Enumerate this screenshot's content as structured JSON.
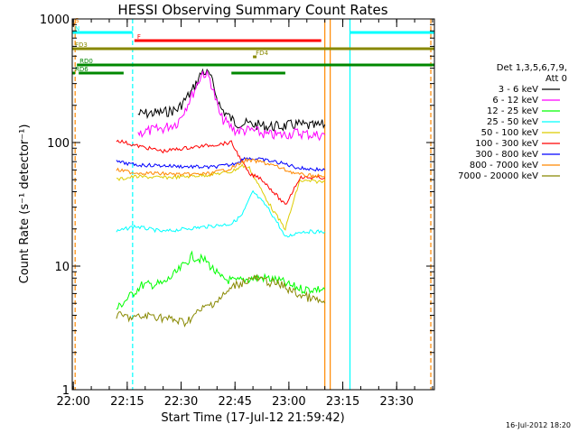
{
  "chart_data": {
    "type": "line",
    "title": "HESSI Observing Summary Count Rates",
    "xlabel": "Start Time (17-Jul-12 21:59:42)",
    "ylabel": "Count Rate (s⁻¹ detector⁻¹)",
    "footer": "16-Jul-2012 18:20",
    "y_scale": "log",
    "ylim": [
      1,
      1000
    ],
    "xlim": [
      "21:59:42",
      "23:40:30"
    ],
    "x_ticks": [
      "22:00",
      "22:15",
      "22:30",
      "22:45",
      "23:00",
      "23:15",
      "23:30"
    ],
    "y_ticks": [
      "1",
      "10",
      "100",
      "1000"
    ],
    "legend": {
      "placement": "right",
      "header": [
        "Det 1,3,5,6,7,9,",
        "Att 0"
      ]
    },
    "series": [
      {
        "name": "3 - 6 keV",
        "color": "#000000",
        "x": [
          "22:18",
          "22:25",
          "22:29",
          "22:33",
          "22:36",
          "22:38",
          "22:41",
          "22:45",
          "22:50",
          "22:54",
          "22:58",
          "23:02",
          "23:07",
          "23:10"
        ],
        "y": [
          170,
          175,
          185,
          260,
          380,
          350,
          190,
          145,
          140,
          135,
          135,
          140,
          135,
          140
        ]
      },
      {
        "name": "6 - 12 keV",
        "color": "#ff00ff",
        "x": [
          "22:18",
          "22:25",
          "22:29",
          "22:33",
          "22:36",
          "22:38",
          "22:41",
          "22:45",
          "22:50",
          "22:54",
          "22:58",
          "23:02",
          "23:07",
          "23:10"
        ],
        "y": [
          120,
          130,
          145,
          240,
          370,
          330,
          160,
          125,
          125,
          115,
          115,
          120,
          115,
          115
        ]
      },
      {
        "name": "12 - 25 keV",
        "color": "#00ff00",
        "x": [
          "22:12",
          "22:19",
          "22:25",
          "22:29",
          "22:33",
          "22:37",
          "22:41",
          "22:45",
          "22:50",
          "22:54",
          "22:58",
          "23:00",
          "23:04",
          "23:10"
        ],
        "y": [
          4.5,
          7,
          7.2,
          9,
          12,
          11,
          8,
          7.5,
          8,
          8,
          7.5,
          7,
          6.5,
          6.5
        ]
      },
      {
        "name": "25 - 50 keV",
        "color": "#00ffff",
        "x": [
          "22:12",
          "22:17",
          "22:25",
          "22:31",
          "22:38",
          "22:44",
          "22:47",
          "22:50",
          "22:54",
          "22:57",
          "22:59",
          "23:03",
          "23:10"
        ],
        "y": [
          19,
          21,
          19,
          20,
          21,
          22,
          26,
          40,
          30,
          22,
          17,
          19,
          19
        ]
      },
      {
        "name": "50 - 100 keV",
        "color": "#ddcc00",
        "x": [
          "22:12",
          "22:17",
          "22:25",
          "22:31",
          "22:38",
          "22:44",
          "22:47",
          "22:49",
          "22:53",
          "22:56",
          "22:59",
          "23:03",
          "23:10"
        ],
        "y": [
          50,
          53,
          52,
          53,
          55,
          58,
          65,
          62,
          38,
          27,
          20,
          49,
          48
        ]
      },
      {
        "name": "100 - 300 keV",
        "color": "#ff0000",
        "x": [
          "22:12",
          "22:17",
          "22:25",
          "22:31",
          "22:38",
          "22:44",
          "22:47",
          "22:49",
          "22:52",
          "22:55",
          "22:59",
          "23:03",
          "23:10"
        ],
        "y": [
          105,
          95,
          85,
          90,
          95,
          100,
          70,
          55,
          52,
          42,
          31,
          52,
          52
        ]
      },
      {
        "name": "300 - 800 keV",
        "color": "#0000ff",
        "x": [
          "22:12",
          "22:17",
          "22:25",
          "22:31",
          "22:38",
          "22:44",
          "22:48",
          "22:52",
          "22:56",
          "22:59",
          "23:03",
          "23:10"
        ],
        "y": [
          70,
          66,
          65,
          64,
          63,
          66,
          75,
          73,
          70,
          67,
          62,
          60
        ]
      },
      {
        "name": "800 - 7000 keV",
        "color": "#ff8800",
        "x": [
          "22:12",
          "22:17",
          "22:25",
          "22:31",
          "22:38",
          "22:44",
          "22:48",
          "22:52",
          "22:56",
          "22:59",
          "23:03",
          "23:10"
        ],
        "y": [
          60,
          57,
          56,
          55,
          56,
          62,
          72,
          70,
          65,
          60,
          55,
          53
        ]
      },
      {
        "name": "7000 - 20000 keV",
        "color": "#888800",
        "x": [
          "22:12",
          "22:17",
          "22:22",
          "22:27",
          "22:31",
          "22:36",
          "22:41",
          "22:45",
          "22:50",
          "22:54",
          "22:58",
          "23:02",
          "23:06",
          "23:10"
        ],
        "y": [
          4,
          3.8,
          4,
          3.7,
          3.5,
          4.5,
          5.5,
          7,
          8,
          7.5,
          7,
          6,
          5.5,
          5
        ]
      }
    ],
    "flags": [
      {
        "label": "S",
        "color": "#ff8800",
        "segments": [
          [
            "21:59:42",
            "22:00:30"
          ]
        ],
        "level": 1
      },
      {
        "label": "N",
        "color": "#00ffff",
        "segments": [
          [
            "21:59:42",
            "22:16:30"
          ],
          [
            "23:17:00",
            "23:40:30"
          ]
        ],
        "level": 2
      },
      {
        "label": "F",
        "color": "#ff0000",
        "segments": [
          [
            "22:17:00",
            "23:09:00"
          ]
        ],
        "level": 3
      },
      {
        "label": "FD3",
        "color": "#888800",
        "segments": [
          [
            "21:59:42",
            "23:40:30"
          ]
        ],
        "level": 4
      },
      {
        "label": "FD4",
        "color": "#888800",
        "segments": [
          [
            "22:50:00",
            "22:51:00"
          ]
        ],
        "level": 5
      },
      {
        "label": "RD0",
        "color": "#008800",
        "segments": [
          [
            "22:01:00",
            "23:40:30"
          ]
        ],
        "level": 6
      },
      {
        "label": "RD6",
        "color": "#008800",
        "segments": [
          [
            "21:59:42",
            "22:00:30"
          ],
          [
            "22:01:30",
            "22:14:00"
          ],
          [
            "22:44:00",
            "22:59:00"
          ]
        ],
        "level": 7
      }
    ],
    "markers": [
      {
        "time": "22:00:30",
        "color": "#ff8800",
        "style": "dashed"
      },
      {
        "time": "22:16:30",
        "color": "#00ffff",
        "style": "dashed"
      },
      {
        "time": "23:10:00",
        "color": "#ff8800",
        "style": "solid"
      },
      {
        "time": "23:11:30",
        "color": "#ff8800",
        "style": "solid"
      },
      {
        "time": "23:17:00",
        "color": "#00ffff",
        "style": "solid"
      },
      {
        "time": "23:39:30",
        "color": "#ff8800",
        "style": "dashed"
      }
    ]
  }
}
